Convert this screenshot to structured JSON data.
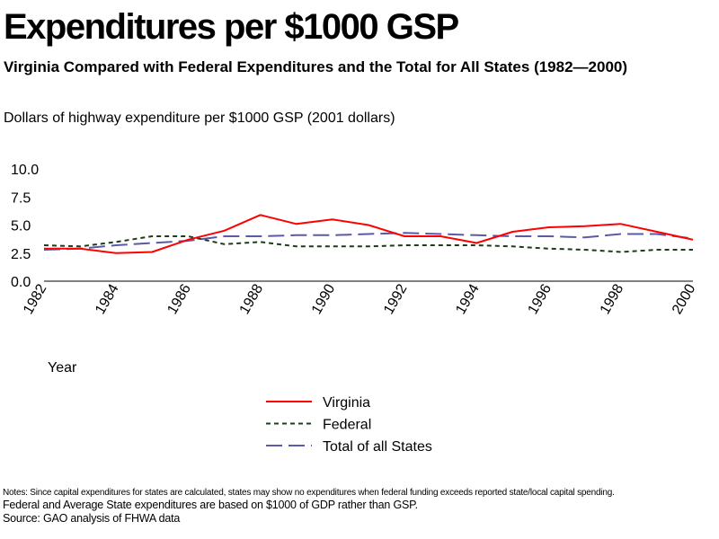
{
  "title": "Expenditures per $1000 GSP",
  "subtitle": "Virginia Compared with Federal Expenditures and the Total for All States (1982—2000)",
  "y_axis_caption": "Dollars of highway expenditure per $1000 GSP (2001 dollars)",
  "notes": [
    "Notes: Since capital expenditures for states are calculated, states may show no expenditures when federal funding exceeds reported state/local capital spending.",
    "Federal and Average State expenditures are based on $1000 of GDP rather than GSP.",
    "Source: GAO analysis of FHWA data"
  ],
  "chart_data": {
    "type": "line",
    "title": "",
    "xlabel": "Year",
    "ylabel": "",
    "x": [
      1982,
      1983,
      1984,
      1985,
      1986,
      1987,
      1988,
      1989,
      1990,
      1991,
      1992,
      1993,
      1994,
      1995,
      1996,
      1997,
      1998,
      1999,
      2000
    ],
    "xticks": [
      "1982",
      "1984",
      "1986",
      "1988",
      "1990",
      "1992",
      "1994",
      "1996",
      "1998",
      "2000"
    ],
    "yticks": [
      "0.0",
      "2.5",
      "5.0",
      "7.5",
      "10.0"
    ],
    "ylim": [
      0,
      10
    ],
    "xlim": [
      1982,
      2000
    ],
    "grid": false,
    "legend_position": "bottom-center",
    "series": [
      {
        "name": "Virginia",
        "color": "#ff0000",
        "dash": "solid",
        "values": [
          2.9,
          2.9,
          2.5,
          2.6,
          3.7,
          4.5,
          5.9,
          5.1,
          5.5,
          5.0,
          4.0,
          4.0,
          3.4,
          4.4,
          4.8,
          4.9,
          5.1,
          4.4,
          3.7
        ]
      },
      {
        "name": "Federal",
        "color": "#1a3d1a",
        "dash": "dotted",
        "values": [
          3.2,
          3.1,
          3.5,
          4.0,
          4.0,
          3.3,
          3.5,
          3.1,
          3.1,
          3.1,
          3.2,
          3.2,
          3.2,
          3.1,
          2.9,
          2.8,
          2.6,
          2.8,
          2.8
        ]
      },
      {
        "name": "Total of all States",
        "color": "#5a5aa8",
        "dash": "dashed",
        "values": [
          2.8,
          2.9,
          3.2,
          3.4,
          3.6,
          4.0,
          4.0,
          4.1,
          4.1,
          4.2,
          4.3,
          4.2,
          4.1,
          4.0,
          4.0,
          3.9,
          4.2,
          4.2,
          3.8
        ]
      }
    ]
  }
}
